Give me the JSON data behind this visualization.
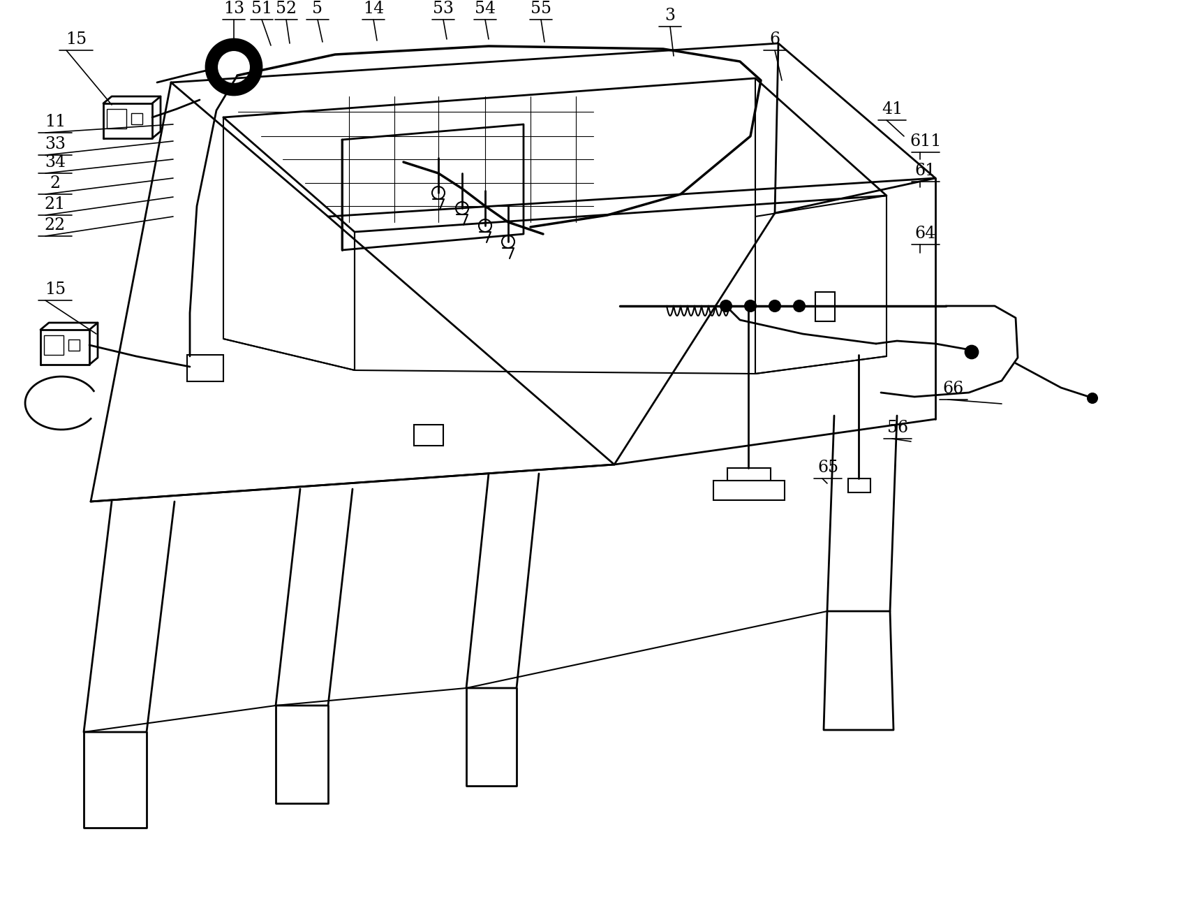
{
  "background_color": "#ffffff",
  "line_color": "#000000",
  "figsize": [
    16.89,
    12.97
  ],
  "dpi": 100,
  "top_labels": [
    [
      "13",
      335,
      62,
      335,
      28
    ],
    [
      "51",
      388,
      65,
      375,
      28
    ],
    [
      "52",
      415,
      62,
      410,
      28
    ],
    [
      "5",
      462,
      60,
      455,
      28
    ],
    [
      "14",
      540,
      58,
      535,
      28
    ],
    [
      "53",
      640,
      56,
      635,
      28
    ],
    [
      "54",
      700,
      56,
      695,
      28
    ],
    [
      "55",
      780,
      60,
      775,
      28
    ],
    [
      "3",
      965,
      80,
      960,
      38
    ],
    [
      "6",
      1120,
      115,
      1110,
      72
    ]
  ],
  "left_labels": [
    [
      "15",
      160,
      150,
      95,
      72
    ],
    [
      "11",
      248,
      178,
      65,
      190
    ],
    [
      "33",
      248,
      202,
      65,
      222
    ],
    [
      "34",
      248,
      228,
      65,
      248
    ],
    [
      "2",
      248,
      255,
      65,
      278
    ],
    [
      "21",
      248,
      282,
      65,
      308
    ],
    [
      "22",
      248,
      310,
      65,
      338
    ],
    [
      "15",
      138,
      478,
      65,
      430
    ]
  ],
  "right_labels": [
    [
      "41",
      1295,
      195,
      1270,
      172
    ],
    [
      "611",
      1318,
      228,
      1318,
      218
    ],
    [
      "61",
      1318,
      268,
      1318,
      260
    ],
    [
      "64",
      1318,
      362,
      1318,
      350
    ],
    [
      "66",
      1435,
      578,
      1358,
      572
    ],
    [
      "56",
      1305,
      632,
      1278,
      628
    ],
    [
      "65",
      1185,
      692,
      1178,
      685
    ]
  ]
}
